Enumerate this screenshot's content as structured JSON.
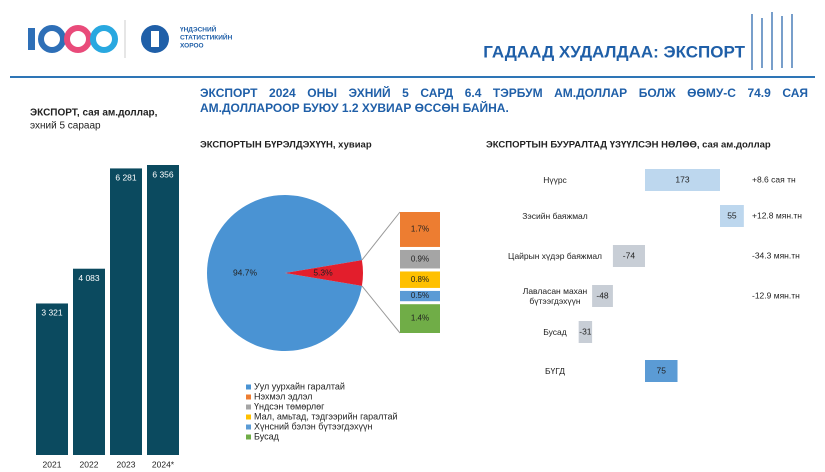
{
  "header": {
    "logo_text": [
      "ҮНДЭСНИЙ",
      "СТАТИСТИКИЙН",
      "ХОРОО"
    ],
    "title": "ГАДААД ХУДАЛДАА: ЭКСПОРТ"
  },
  "headline": "ЭКСПОРТ 2024 ОНЫ ЭХНИЙ 5 САРД 6.4 ТЭРБУМ АМ.ДОЛЛАР БОЛЖ ӨӨМУ-С 74.9 САЯ АМ.ДОЛЛАРООР БУЮУ 1.2 ХУВИАР ӨССӨН БАЙНА.",
  "chart_data": [
    {
      "type": "bar",
      "title": "ЭКСПОРТ, сая ам.доллар,",
      "subtitle": "эхний 5 сараар",
      "categories": [
        "2021",
        "2022",
        "2023",
        "2024*"
      ],
      "values": [
        3321,
        4083,
        6281,
        6356
      ],
      "value_labels": [
        "3 321",
        "4 083",
        "6 281",
        "6 356"
      ],
      "color": "#0b4a5f"
    },
    {
      "type": "pie",
      "title": "ЭКСПОРТЫН БҮРЭЛДЭХҮҮН, хувиар",
      "categories": [
        "Уул уурхайн гаралтай",
        "Нэхмэл эдлэл",
        "Үндсэн төмөрлөг",
        "Мал, амьтад, тэдгээрийн гаралтай",
        "Хүнсний бэлэн бүтээгдэхүүн",
        "Бусад"
      ],
      "values": [
        94.7,
        1.7,
        0.9,
        0.8,
        0.5,
        1.4
      ],
      "value_labels": [
        "94.7%",
        "1.7%",
        "0.9%",
        "0.8%",
        "0.5%",
        "1.4%"
      ],
      "colors": [
        "#4a93d3",
        "#ed7d31",
        "#a5a5a5",
        "#ffc000",
        "#5b9bd5",
        "#70ad47"
      ],
      "group": {
        "value": 5.3,
        "label": "5.3%",
        "color": "#e31e2c"
      }
    },
    {
      "type": "waterfall",
      "title": "ЭКСПОРТЫН БУУРАЛТАД ҮЗҮҮЛСЭН НӨЛӨӨ, сая ам.доллар",
      "categories": [
        "Нүүрс",
        "Зэсийн баяжмал",
        "Цайрын хүдэр баяжмал",
        "Лавласан махан бүтээгдэхүүн",
        "Бусад",
        "БҮГД"
      ],
      "values": [
        173,
        55,
        -74,
        -48,
        -31,
        75
      ],
      "colors": [
        "#bdd7ee",
        "#bdd7ee",
        "#c8ced6",
        "#c8ced6",
        "#c8ced6",
        "#5b9bd5"
      ],
      "notes": [
        "+8.6 сая тн",
        "+12.8 мян.тн",
        "-34.3 мян.тн",
        "-12.9 мян.тн"
      ]
    }
  ]
}
